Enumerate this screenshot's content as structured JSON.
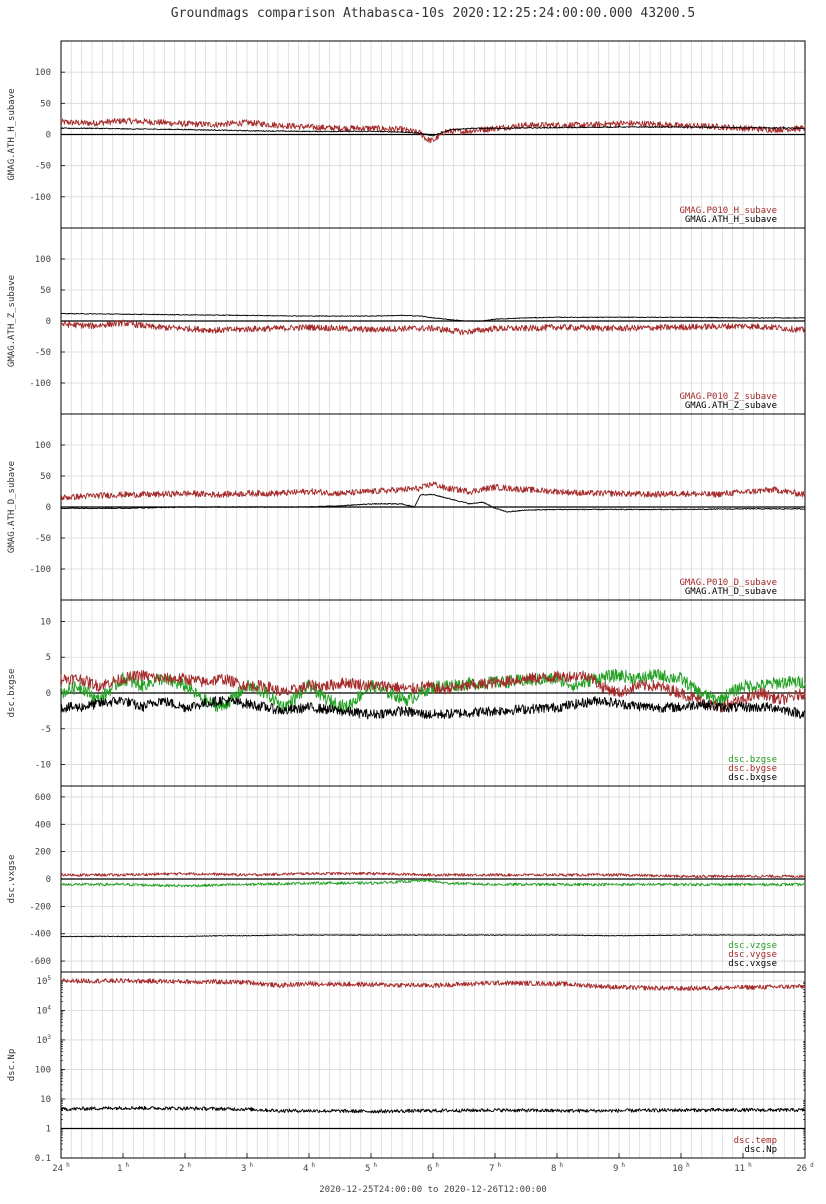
{
  "page": {
    "title": "Groundmags comparison Athabasca-10s 2020:12:25:24:00:00.000 43200.5",
    "footer": "2020-12-25T24:00:00 to 2020-12-26T12:00:00"
  },
  "x_axis": {
    "range_hours": [
      0,
      12
    ],
    "ticks": [
      {
        "pos": 0,
        "num": "24",
        "sup": "h"
      },
      {
        "pos": 1,
        "num": "1",
        "sup": "h"
      },
      {
        "pos": 2,
        "num": "2",
        "sup": "h"
      },
      {
        "pos": 3,
        "num": "3",
        "sup": "h"
      },
      {
        "pos": 4,
        "num": "4",
        "sup": "h"
      },
      {
        "pos": 5,
        "num": "5",
        "sup": "h"
      },
      {
        "pos": 6,
        "num": "6",
        "sup": "h"
      },
      {
        "pos": 7,
        "num": "7",
        "sup": "h"
      },
      {
        "pos": 8,
        "num": "8",
        "sup": "h"
      },
      {
        "pos": 9,
        "num": "9",
        "sup": "h"
      },
      {
        "pos": 10,
        "num": "10",
        "sup": "h"
      },
      {
        "pos": 11,
        "num": "11",
        "sup": "h"
      },
      {
        "pos": 12,
        "num": "26",
        "sup": "d"
      }
    ]
  },
  "colors": {
    "red": "#a52a2a",
    "green": "#22a022",
    "black": "#000000",
    "grid": "#d9d9d9"
  },
  "chart_data": [
    {
      "type": "line",
      "ylabel": "GMAG.ATH_H_subave",
      "ylim": [
        -150,
        150
      ],
      "yticks": [
        100,
        50,
        0,
        -50,
        -100
      ],
      "yticklabels": [
        "100",
        "50",
        "0",
        "-50",
        "-100"
      ],
      "legend": [
        "GMAG.P010_H_subave",
        "GMAG.ATH_H_subave"
      ],
      "series": [
        {
          "name": "GMAG.P010_H_subave",
          "color": "red",
          "noise": 5,
          "x": [
            0,
            0.5,
            1,
            1.5,
            2,
            2.5,
            3,
            3.5,
            4,
            4.5,
            5,
            5.5,
            5.8,
            5.9,
            6.0,
            6.2,
            6.5,
            7,
            7.5,
            8,
            8.5,
            9,
            9.5,
            10,
            10.5,
            11,
            11.5,
            12
          ],
          "y": [
            20,
            18,
            22,
            20,
            17,
            16,
            19,
            15,
            12,
            10,
            10,
            8,
            2,
            -8,
            -10,
            5,
            5,
            10,
            15,
            15,
            15,
            18,
            17,
            14,
            13,
            10,
            8,
            10
          ]
        },
        {
          "name": "GMAG.ATH_H_subave",
          "color": "black",
          "noise": 0.8,
          "x": [
            0,
            0.5,
            1,
            2,
            3,
            4,
            5,
            5.5,
            5.8,
            6.0,
            6.3,
            6.6,
            7,
            8,
            9,
            10,
            11,
            12
          ],
          "y": [
            10,
            10,
            9,
            8,
            6,
            5,
            5,
            4,
            2,
            -2,
            8,
            10,
            10,
            11,
            12,
            12,
            11,
            10
          ]
        }
      ]
    },
    {
      "type": "line",
      "ylabel": "GMAG.ATH_Z_subave",
      "ylim": [
        -150,
        150
      ],
      "yticks": [
        100,
        50,
        0,
        -50,
        -100
      ],
      "yticklabels": [
        "100",
        "50",
        "0",
        "-50",
        "-100"
      ],
      "legend": [
        "GMAG.P010_Z_subave",
        "GMAG.ATH_Z_subave"
      ],
      "series": [
        {
          "name": "GMAG.P010_Z_subave",
          "color": "red",
          "noise": 5,
          "x": [
            0,
            0.5,
            1,
            1.5,
            2,
            2.5,
            3,
            3.5,
            4,
            4.5,
            5,
            5.5,
            6,
            6.5,
            7,
            7.5,
            8,
            9,
            10,
            11,
            11.5,
            12
          ],
          "y": [
            -5,
            -8,
            -3,
            -10,
            -12,
            -15,
            -13,
            -12,
            -10,
            -12,
            -14,
            -12,
            -12,
            -18,
            -12,
            -12,
            -10,
            -12,
            -10,
            -8,
            -10,
            -15
          ]
        },
        {
          "name": "GMAG.ATH_Z_subave",
          "color": "black",
          "noise": 0.6,
          "x": [
            0,
            1,
            2,
            3,
            4,
            5,
            5.5,
            5.8,
            6.0,
            6.5,
            6.8,
            7,
            7.5,
            8,
            9,
            10,
            11,
            12
          ],
          "y": [
            12,
            11,
            10,
            9,
            8,
            8,
            9,
            8,
            5,
            0,
            0,
            3,
            5,
            6,
            6,
            6,
            5,
            5
          ]
        }
      ]
    },
    {
      "type": "line",
      "ylabel": "GMAG.ATH_D_subave",
      "ylim": [
        -150,
        150
      ],
      "yticks": [
        100,
        50,
        0,
        -50,
        -100
      ],
      "yticklabels": [
        "100",
        "50",
        "0",
        "-50",
        "-100"
      ],
      "legend": [
        "GMAG.P010_D_subave",
        "GMAG.ATH_D_subave"
      ],
      "series": [
        {
          "name": "GMAG.P010_D_subave",
          "color": "red",
          "noise": 5,
          "x": [
            0,
            0.5,
            1,
            1.5,
            2,
            2.5,
            3,
            3.5,
            4,
            4.5,
            5,
            5.5,
            5.8,
            6.0,
            6.2,
            6.4,
            6.6,
            7,
            7.5,
            8,
            8.5,
            9,
            9.5,
            10,
            10.5,
            11,
            11.5,
            12
          ],
          "y": [
            15,
            18,
            20,
            20,
            22,
            20,
            22,
            22,
            25,
            22,
            25,
            28,
            30,
            38,
            30,
            28,
            25,
            32,
            28,
            25,
            22,
            22,
            20,
            22,
            20,
            24,
            28,
            20
          ]
        },
        {
          "name": "GMAG.ATH_D_subave",
          "color": "black",
          "noise": 0.8,
          "x": [
            0,
            1,
            2,
            3,
            4,
            4.5,
            5,
            5.5,
            5.7,
            5.8,
            6.0,
            6.2,
            6.4,
            6.6,
            6.8,
            7,
            7.2,
            7.5,
            8,
            9,
            10,
            11,
            12
          ],
          "y": [
            -2,
            -2,
            0,
            0,
            0,
            2,
            5,
            5,
            0,
            20,
            20,
            15,
            10,
            5,
            8,
            -2,
            -8,
            -5,
            -4,
            -4,
            -4,
            -3,
            -3
          ]
        }
      ]
    },
    {
      "type": "line",
      "ylabel": "dsc.bxgse",
      "ylim": [
        -13,
        13
      ],
      "yticks": [
        10,
        5,
        0,
        -5,
        -10
      ],
      "yticklabels": [
        "10",
        "5",
        "0",
        "-5",
        "-10"
      ],
      "legend": [
        "dsc.bzgse",
        "dsc.bygse",
        "dsc.bxgse"
      ],
      "series": [
        {
          "name": "dsc.bzgse",
          "color": "green",
          "noise": 0.9,
          "x": [
            0,
            0.3,
            0.6,
            1,
            1.3,
            1.6,
            2,
            2.3,
            2.6,
            3,
            3.3,
            3.6,
            4,
            4.3,
            4.6,
            5,
            5.3,
            5.6,
            5.9,
            6.1,
            8,
            8.3,
            8.6,
            9,
            9.3,
            9.6,
            10,
            10.3,
            10.6,
            11,
            11.3,
            11.6,
            12
          ],
          "y": [
            0,
            1,
            -1,
            2,
            1,
            2,
            1,
            -1,
            -2,
            1,
            0,
            -2,
            1,
            -1,
            -2,
            1,
            0,
            -1,
            0.5,
            1,
            2,
            1,
            2,
            2.5,
            2,
            2.5,
            2,
            0,
            -1,
            1,
            1,
            1.5,
            1.5
          ]
        },
        {
          "name": "dsc.bygse",
          "color": "red",
          "noise": 0.8,
          "x": [
            0,
            0.3,
            0.6,
            1,
            1.3,
            1.6,
            2,
            2.3,
            2.6,
            3,
            3.3,
            3.6,
            4,
            4.3,
            4.6,
            5,
            5.3,
            5.6,
            5.9,
            6.1,
            7.5,
            8.5,
            8.7,
            9,
            9.3,
            9.6,
            10,
            10.3,
            10.6,
            11,
            11.3,
            11.6,
            12
          ],
          "y": [
            2,
            2,
            1,
            2,
            2.5,
            2,
            2,
            1.5,
            2,
            1,
            1,
            0,
            1,
            1,
            1.5,
            1,
            1,
            0.5,
            1,
            0.5,
            2,
            2.5,
            1,
            0,
            1,
            1,
            0,
            -1,
            -2,
            -1,
            0,
            -1,
            0
          ]
        },
        {
          "name": "dsc.bxgse",
          "color": "black",
          "noise": 0.7,
          "x": [
            0,
            0.3,
            0.6,
            1,
            1.3,
            1.6,
            2,
            2.3,
            2.6,
            3,
            3.3,
            3.6,
            4,
            4.5,
            5,
            5.5,
            5.9,
            6.1,
            7,
            8,
            8.7,
            9,
            9.5,
            10,
            10.3,
            10.6,
            11,
            11.5,
            12
          ],
          "y": [
            -2,
            -2,
            -1.5,
            -1,
            -2,
            -1,
            -2,
            -1.5,
            -1,
            -1.5,
            -2,
            -2.5,
            -2,
            -2.5,
            -3,
            -2.5,
            -3,
            -3,
            -2.5,
            -2,
            -1,
            -1.5,
            -2,
            -2,
            -1.5,
            -2,
            -2,
            -2,
            -3
          ]
        }
      ]
    },
    {
      "type": "line",
      "ylabel": "dsc.vxgse",
      "ylim": [
        -680,
        680
      ],
      "yticks": [
        600,
        400,
        200,
        0,
        -200,
        -400,
        -600
      ],
      "yticklabels": [
        "600",
        "400",
        "200",
        "0",
        "-200",
        "-400",
        "-600"
      ],
      "legend": [
        "dsc.vzgse",
        "dsc.vygse",
        "dsc.vxgse"
      ],
      "series": [
        {
          "name": "dsc.vzgse",
          "color": "green",
          "noise": 10,
          "x": [
            0,
            1,
            2,
            3,
            4,
            5,
            5.5,
            5.9,
            6.2,
            7,
            8,
            9,
            10,
            11,
            12
          ],
          "y": [
            -40,
            -40,
            -50,
            -40,
            -30,
            -30,
            -20,
            -10,
            -30,
            -40,
            -40,
            -40,
            -40,
            -40,
            -40
          ]
        },
        {
          "name": "dsc.vygse",
          "color": "red",
          "noise": 10,
          "x": [
            0,
            1,
            2,
            3,
            4,
            5,
            6,
            7,
            8,
            9,
            10,
            11,
            12
          ],
          "y": [
            30,
            30,
            40,
            30,
            40,
            40,
            30,
            30,
            30,
            30,
            20,
            20,
            20
          ]
        },
        {
          "name": "dsc.vxgse",
          "color": "black",
          "noise": 3,
          "x": [
            0,
            1,
            2,
            2.5,
            3,
            3.5,
            4,
            5,
            6,
            7,
            8,
            9,
            10,
            11,
            12
          ],
          "y": [
            -420,
            -420,
            -420,
            -415,
            -415,
            -410,
            -410,
            -410,
            -410,
            -410,
            -410,
            -415,
            -410,
            -410,
            -410
          ]
        }
      ]
    },
    {
      "type": "line",
      "ylabel": "dsc.Np",
      "yscale": "log",
      "ylim": [
        0.1,
        200000
      ],
      "yticks": [
        100000,
        10000,
        1000,
        100,
        10,
        1,
        0.1
      ],
      "yticklabels": [
        {
          "num": "10",
          "sup": "5"
        },
        {
          "num": "10",
          "sup": "4"
        },
        {
          "num": "10",
          "sup": "3"
        },
        {
          "num": "100",
          "sup": ""
        },
        {
          "num": "10",
          "sup": ""
        },
        {
          "num": "1",
          "sup": ""
        },
        {
          "num": "0.1",
          "sup": ""
        }
      ],
      "legend": [
        "dsc.temp",
        "dsc.Np"
      ],
      "series": [
        {
          "name": "dsc.temp",
          "color": "red",
          "noise": 0.08,
          "x": [
            0,
            1,
            2,
            3,
            3.5,
            4,
            5,
            6,
            7,
            8,
            9,
            10,
            11,
            12
          ],
          "y": [
            100000,
            100000,
            95000,
            90000,
            70000,
            80000,
            75000,
            70000,
            85000,
            80000,
            60000,
            55000,
            60000,
            65000
          ]
        },
        {
          "name": "dsc.Np",
          "color": "black",
          "noise": 0.06,
          "x": [
            0,
            1,
            2,
            3,
            3.5,
            4,
            5,
            6,
            7,
            8,
            9,
            10,
            11,
            12
          ],
          "y": [
            4.5,
            5,
            4.8,
            4.5,
            4,
            4,
            3.8,
            4,
            4.2,
            4,
            4,
            4.2,
            4.2,
            4.2
          ]
        }
      ]
    }
  ]
}
